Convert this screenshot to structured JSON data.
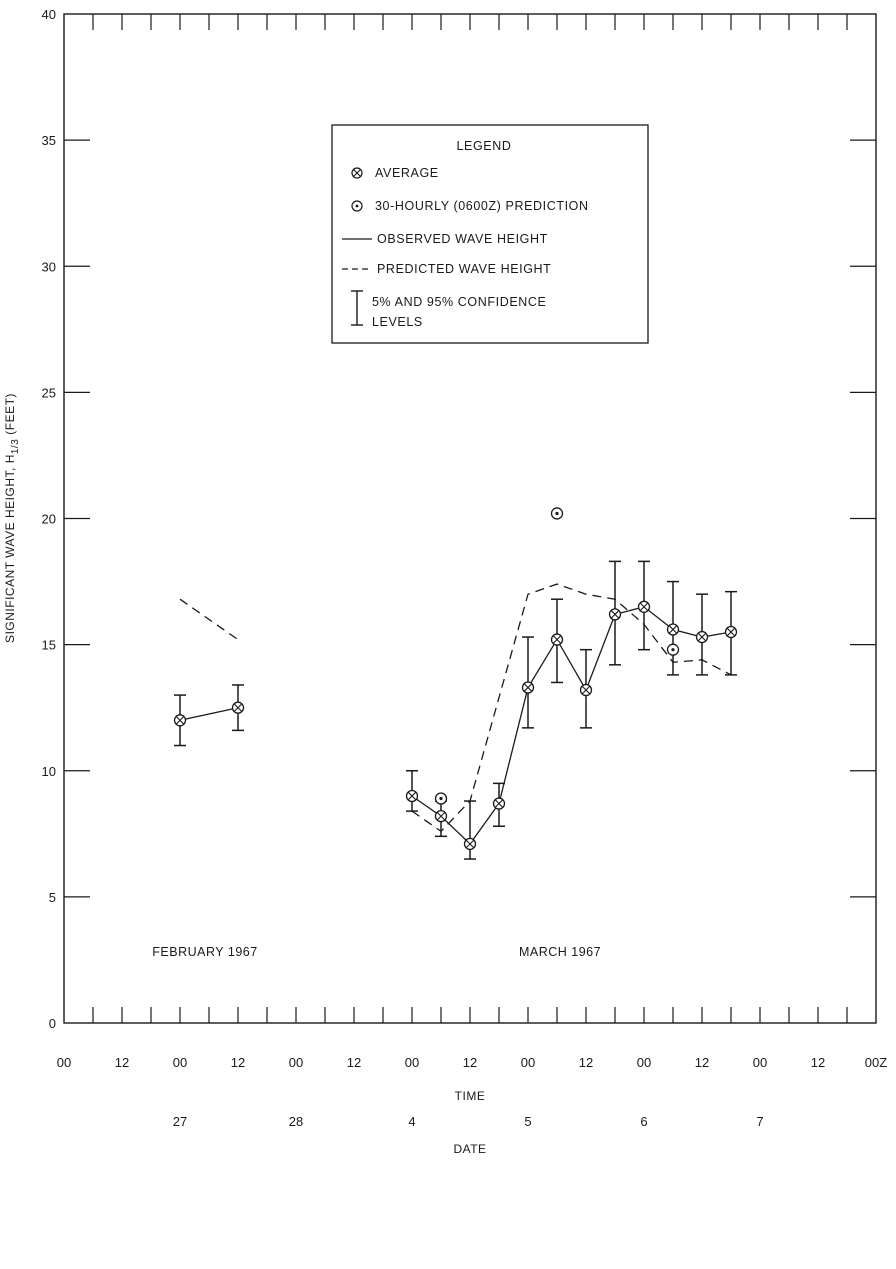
{
  "chart_data": {
    "type": "line",
    "xlabel": "TIME",
    "x2label": "DATE",
    "ylabel": "SIGNIFICANT WAVE HEIGHT, H",
    "ylabel_subscript": "1/3",
    "ylabel_unit": "(FEET)",
    "ylim": [
      0,
      40
    ],
    "yticks": [
      "0",
      "5",
      "10",
      "15",
      "20",
      "25",
      "30",
      "35",
      "40"
    ],
    "xlim": [
      0,
      168
    ],
    "time_tick_labels": [
      "00",
      "12",
      "00",
      "12",
      "00",
      "12",
      "00",
      "12",
      "00",
      "12",
      "00",
      "12",
      "00",
      "12",
      "00Z"
    ],
    "date_labels": [
      "27",
      "28",
      "4",
      "5",
      "6",
      "7"
    ],
    "annotations": [
      "FEBRUARY 1967",
      "MARCH 1967"
    ],
    "legend": {
      "title": "LEGEND",
      "placement": "top-center",
      "items": [
        "AVERAGE",
        "30-HOURLY (0600Z) PREDICTION",
        "OBSERVED WAVE HEIGHT",
        "PREDICTED WAVE HEIGHT",
        "5% AND 95% CONFIDENCE LEVELS"
      ]
    },
    "series": [
      {
        "name": "OBSERVED WAVE HEIGHT",
        "style": "solid",
        "segments": [
          [
            [
              24,
              12.0
            ],
            [
              36,
              12.5
            ]
          ],
          [
            [
              72,
              9.0
            ],
            [
              78,
              8.2
            ],
            [
              84,
              7.1
            ],
            [
              90,
              8.7
            ],
            [
              96,
              13.3
            ],
            [
              102,
              15.2
            ],
            [
              108,
              13.2
            ],
            [
              114,
              16.2
            ],
            [
              120,
              16.5
            ],
            [
              126,
              15.6
            ],
            [
              132,
              15.3
            ],
            [
              138,
              15.5
            ]
          ]
        ]
      },
      {
        "name": "PREDICTED WAVE HEIGHT",
        "style": "dashed",
        "segments": [
          [
            [
              24,
              16.8
            ],
            [
              36,
              15.2
            ]
          ],
          [
            [
              72,
              8.4
            ],
            [
              78,
              7.6
            ],
            [
              84,
              8.8
            ],
            [
              96,
              17.0
            ],
            [
              102,
              17.4
            ],
            [
              108,
              17.0
            ],
            [
              114,
              16.8
            ],
            [
              120,
              15.8
            ],
            [
              126,
              14.3
            ],
            [
              132,
              14.4
            ],
            [
              138,
              13.8
            ]
          ]
        ]
      },
      {
        "name": "AVERAGE",
        "points": [
          [
            24,
            12.0
          ],
          [
            36,
            12.5
          ],
          [
            72,
            9.0
          ],
          [
            78,
            8.2
          ],
          [
            84,
            7.1
          ],
          [
            90,
            8.7
          ],
          [
            96,
            13.3
          ],
          [
            102,
            15.2
          ],
          [
            108,
            13.2
          ],
          [
            114,
            16.2
          ],
          [
            120,
            16.5
          ],
          [
            126,
            15.6
          ],
          [
            132,
            15.3
          ],
          [
            138,
            15.5
          ]
        ]
      },
      {
        "name": "30-HOURLY (0600Z) PREDICTION",
        "points": [
          [
            78,
            8.9
          ],
          [
            102,
            20.2
          ],
          [
            126,
            14.8
          ]
        ]
      },
      {
        "name": "5% AND 95% CONFIDENCE LEVELS",
        "intervals": [
          [
            24,
            11.0,
            13.0
          ],
          [
            36,
            11.6,
            13.4
          ],
          [
            72,
            8.4,
            10.0
          ],
          [
            78,
            7.4,
            8.8
          ],
          [
            84,
            6.5,
            8.8
          ],
          [
            90,
            7.8,
            9.5
          ],
          [
            96,
            11.7,
            15.3
          ],
          [
            102,
            13.5,
            16.8
          ],
          [
            108,
            11.7,
            14.8
          ],
          [
            114,
            14.2,
            18.3
          ],
          [
            120,
            14.8,
            18.3
          ],
          [
            126,
            13.8,
            17.5
          ],
          [
            132,
            13.8,
            17.0
          ],
          [
            138,
            13.8,
            17.1
          ]
        ]
      }
    ]
  }
}
